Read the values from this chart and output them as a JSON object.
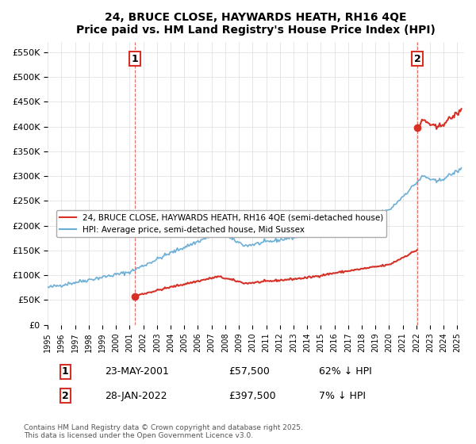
{
  "title": "24, BRUCE CLOSE, HAYWARDS HEATH, RH16 4QE",
  "subtitle": "Price paid vs. HM Land Registry's House Price Index (HPI)",
  "legend_line1": "24, BRUCE CLOSE, HAYWARDS HEATH, RH16 4QE (semi-detached house)",
  "legend_line2": "HPI: Average price, semi-detached house, Mid Sussex",
  "annotation1_label": "1",
  "annotation1_date": "23-MAY-2001",
  "annotation1_price": "£57,500",
  "annotation1_hpi": "62% ↓ HPI",
  "annotation2_label": "2",
  "annotation2_date": "28-JAN-2022",
  "annotation2_price": "£397,500",
  "annotation2_hpi": "7% ↓ HPI",
  "footer": "Contains HM Land Registry data © Crown copyright and database right 2025.\nThis data is licensed under the Open Government Licence v3.0.",
  "hpi_color": "#6baed6",
  "price_color": "#d73027",
  "ylim_max": 570000,
  "ylim_min": 0,
  "year_start": 1995,
  "year_end": 2025,
  "sale1_year": 2001.4,
  "sale1_price": 57500,
  "sale2_year": 2022.08,
  "sale2_price": 397500,
  "hpi_base_year": 1995.5,
  "hpi_base_value": 75000
}
